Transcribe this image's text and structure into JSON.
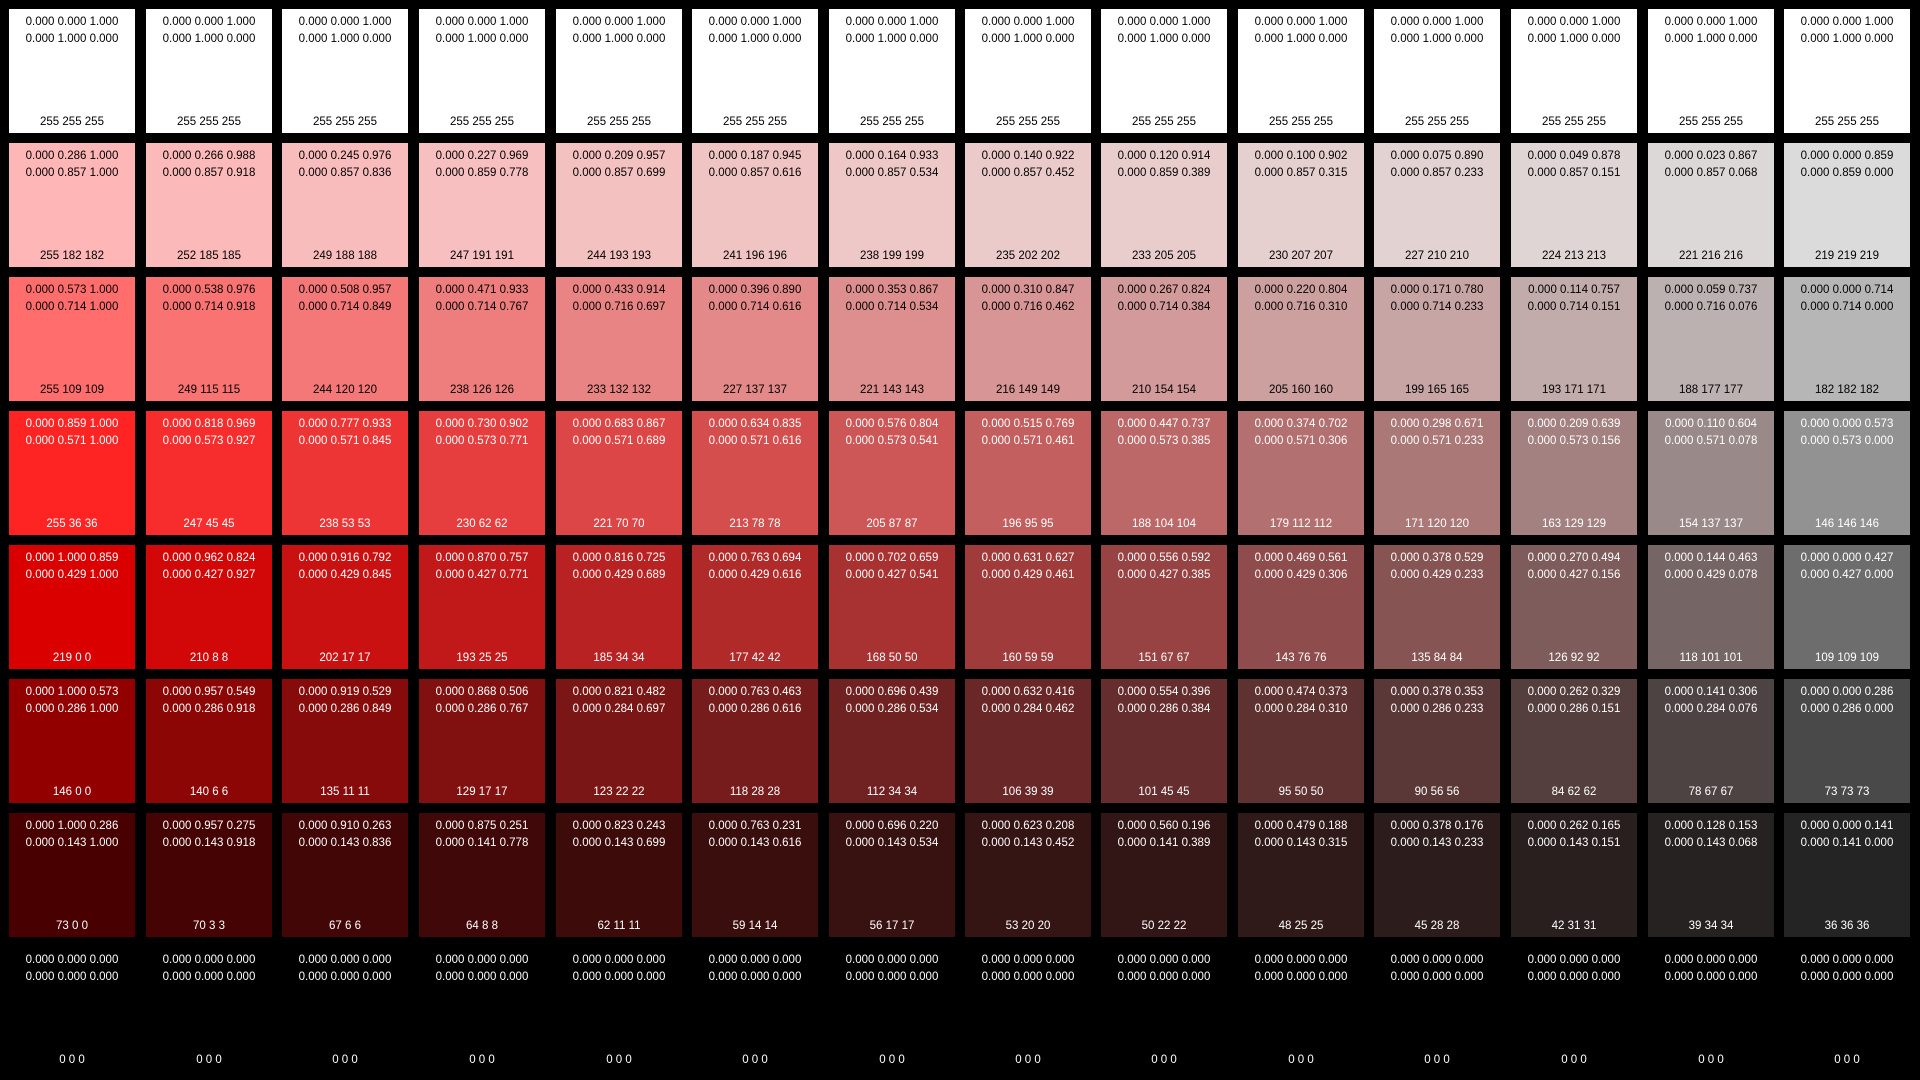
{
  "swatches": [
    [
      {
        "line1": "0.000 0.000 1.000",
        "line2": "0.000 1.000 0.000",
        "rgb": "255 255 255",
        "color": "#ffffff"
      },
      {
        "line1": "0.000 0.000 1.000",
        "line2": "0.000 1.000 0.000",
        "rgb": "255 255 255",
        "color": "#ffffff"
      },
      {
        "line1": "0.000 0.000 1.000",
        "line2": "0.000 1.000 0.000",
        "rgb": "255 255 255",
        "color": "#ffffff"
      },
      {
        "line1": "0.000 0.000 1.000",
        "line2": "0.000 1.000 0.000",
        "rgb": "255 255 255",
        "color": "#ffffff"
      },
      {
        "line1": "0.000 0.000 1.000",
        "line2": "0.000 1.000 0.000",
        "rgb": "255 255 255",
        "color": "#ffffff"
      },
      {
        "line1": "0.000 0.000 1.000",
        "line2": "0.000 1.000 0.000",
        "rgb": "255 255 255",
        "color": "#ffffff"
      },
      {
        "line1": "0.000 0.000 1.000",
        "line2": "0.000 1.000 0.000",
        "rgb": "255 255 255",
        "color": "#ffffff"
      },
      {
        "line1": "0.000 0.000 1.000",
        "line2": "0.000 1.000 0.000",
        "rgb": "255 255 255",
        "color": "#ffffff"
      },
      {
        "line1": "0.000 0.000 1.000",
        "line2": "0.000 1.000 0.000",
        "rgb": "255 255 255",
        "color": "#ffffff"
      },
      {
        "line1": "0.000 0.000 1.000",
        "line2": "0.000 1.000 0.000",
        "rgb": "255 255 255",
        "color": "#ffffff"
      },
      {
        "line1": "0.000 0.000 1.000",
        "line2": "0.000 1.000 0.000",
        "rgb": "255 255 255",
        "color": "#ffffff"
      },
      {
        "line1": "0.000 0.000 1.000",
        "line2": "0.000 1.000 0.000",
        "rgb": "255 255 255",
        "color": "#ffffff"
      },
      {
        "line1": "0.000 0.000 1.000",
        "line2": "0.000 1.000 0.000",
        "rgb": "255 255 255",
        "color": "#ffffff"
      },
      {
        "line1": "0.000 0.000 1.000",
        "line2": "0.000 1.000 0.000",
        "rgb": "255 255 255",
        "color": "#ffffff"
      }
    ],
    [
      {
        "line1": "0.000 0.286 1.000",
        "line2": "0.000 0.857 1.000",
        "rgb": "255 182 182",
        "color": "#ffb6b6"
      },
      {
        "line1": "0.000 0.266 0.988",
        "line2": "0.000 0.857 0.918",
        "rgb": "252 185 185",
        "color": "#fcb9b9"
      },
      {
        "line1": "0.000 0.245 0.976",
        "line2": "0.000 0.857 0.836",
        "rgb": "249 188 188",
        "color": "#f9bcbc"
      },
      {
        "line1": "0.000 0.227 0.969",
        "line2": "0.000 0.859 0.778",
        "rgb": "247 191 191",
        "color": "#f7bfbf"
      },
      {
        "line1": "0.000 0.209 0.957",
        "line2": "0.000 0.857 0.699",
        "rgb": "244 193 193",
        "color": "#f4c1c1"
      },
      {
        "line1": "0.000 0.187 0.945",
        "line2": "0.000 0.857 0.616",
        "rgb": "241 196 196",
        "color": "#f1c4c4"
      },
      {
        "line1": "0.000 0.164 0.933",
        "line2": "0.000 0.857 0.534",
        "rgb": "238 199 199",
        "color": "#eec7c7"
      },
      {
        "line1": "0.000 0.140 0.922",
        "line2": "0.000 0.857 0.452",
        "rgb": "235 202 202",
        "color": "#ebcaca"
      },
      {
        "line1": "0.000 0.120 0.914",
        "line2": "0.000 0.859 0.389",
        "rgb": "233 205 205",
        "color": "#e9cdcd"
      },
      {
        "line1": "0.000 0.100 0.902",
        "line2": "0.000 0.857 0.315",
        "rgb": "230 207 207",
        "color": "#e6cfcf"
      },
      {
        "line1": "0.000 0.075 0.890",
        "line2": "0.000 0.857 0.233",
        "rgb": "227 210 210",
        "color": "#e3d2d2"
      },
      {
        "line1": "0.000 0.049 0.878",
        "line2": "0.000 0.857 0.151",
        "rgb": "224 213 213",
        "color": "#e0d5d5"
      },
      {
        "line1": "0.000 0.023 0.867",
        "line2": "0.000 0.857 0.068",
        "rgb": "221 216 216",
        "color": "#ddd8d8"
      },
      {
        "line1": "0.000 0.000 0.859",
        "line2": "0.000 0.859 0.000",
        "rgb": "219 219 219",
        "color": "#dbdbdb"
      }
    ],
    [
      {
        "line1": "0.000 0.573 1.000",
        "line2": "0.000 0.714 1.000",
        "rgb": "255 109 109",
        "color": "#ff6d6d"
      },
      {
        "line1": "0.000 0.538 0.976",
        "line2": "0.000 0.714 0.918",
        "rgb": "249 115 115",
        "color": "#f97373"
      },
      {
        "line1": "0.000 0.508 0.957",
        "line2": "0.000 0.714 0.849",
        "rgb": "244 120 120",
        "color": "#f47878"
      },
      {
        "line1": "0.000 0.471 0.933",
        "line2": "0.000 0.714 0.767",
        "rgb": "238 126 126",
        "color": "#ee7e7e"
      },
      {
        "line1": "0.000 0.433 0.914",
        "line2": "0.000 0.716 0.697",
        "rgb": "233 132 132",
        "color": "#e98484"
      },
      {
        "line1": "0.000 0.396 0.890",
        "line2": "0.000 0.714 0.616",
        "rgb": "227 137 137",
        "color": "#e38989"
      },
      {
        "line1": "0.000 0.353 0.867",
        "line2": "0.000 0.714 0.534",
        "rgb": "221 143 143",
        "color": "#dd8f8f"
      },
      {
        "line1": "0.000 0.310 0.847",
        "line2": "0.000 0.716 0.462",
        "rgb": "216 149 149",
        "color": "#d89595"
      },
      {
        "line1": "0.000 0.267 0.824",
        "line2": "0.000 0.714 0.384",
        "rgb": "210 154 154",
        "color": "#d29a9a"
      },
      {
        "line1": "0.000 0.220 0.804",
        "line2": "0.000 0.716 0.310",
        "rgb": "205 160 160",
        "color": "#cda0a0"
      },
      {
        "line1": "0.000 0.171 0.780",
        "line2": "0.000 0.714 0.233",
        "rgb": "199 165 165",
        "color": "#c7a5a5"
      },
      {
        "line1": "0.000 0.114 0.757",
        "line2": "0.000 0.714 0.151",
        "rgb": "193 171 171",
        "color": "#c1abab"
      },
      {
        "line1": "0.000 0.059 0.737",
        "line2": "0.000 0.716 0.076",
        "rgb": "188 177 177",
        "color": "#bcb1b1"
      },
      {
        "line1": "0.000 0.000 0.714",
        "line2": "0.000 0.714 0.000",
        "rgb": "182 182 182",
        "color": "#b6b6b6"
      }
    ],
    [
      {
        "line1": "0.000 0.859 1.000",
        "line2": "0.000 0.571 1.000",
        "rgb": "255 36 36",
        "color": "#ff2424"
      },
      {
        "line1": "0.000 0.818 0.969",
        "line2": "0.000 0.573 0.927",
        "rgb": "247 45 45",
        "color": "#f72d2d"
      },
      {
        "line1": "0.000 0.777 0.933",
        "line2": "0.000 0.571 0.845",
        "rgb": "238 53 53",
        "color": "#ee3535"
      },
      {
        "line1": "0.000 0.730 0.902",
        "line2": "0.000 0.573 0.771",
        "rgb": "230 62 62",
        "color": "#e63e3e"
      },
      {
        "line1": "0.000 0.683 0.867",
        "line2": "0.000 0.571 0.689",
        "rgb": "221 70 70",
        "color": "#dd4646"
      },
      {
        "line1": "0.000 0.634 0.835",
        "line2": "0.000 0.571 0.616",
        "rgb": "213 78 78",
        "color": "#d54e4e"
      },
      {
        "line1": "0.000 0.576 0.804",
        "line2": "0.000 0.573 0.541",
        "rgb": "205 87 87",
        "color": "#cd5757"
      },
      {
        "line1": "0.000 0.515 0.769",
        "line2": "0.000 0.571 0.461",
        "rgb": "196 95 95",
        "color": "#c45f5f"
      },
      {
        "line1": "0.000 0.447 0.737",
        "line2": "0.000 0.573 0.385",
        "rgb": "188 104 104",
        "color": "#bc6868"
      },
      {
        "line1": "0.000 0.374 0.702",
        "line2": "0.000 0.571 0.306",
        "rgb": "179 112 112",
        "color": "#b37070"
      },
      {
        "line1": "0.000 0.298 0.671",
        "line2": "0.000 0.571 0.233",
        "rgb": "171 120 120",
        "color": "#ab7878"
      },
      {
        "line1": "0.000 0.209 0.639",
        "line2": "0.000 0.573 0.156",
        "rgb": "163 129 129",
        "color": "#a38181"
      },
      {
        "line1": "0.000 0.110 0.604",
        "line2": "0.000 0.571 0.078",
        "rgb": "154 137 137",
        "color": "#9a8989"
      },
      {
        "line1": "0.000 0.000 0.573",
        "line2": "0.000 0.573 0.000",
        "rgb": "146 146 146",
        "color": "#929292"
      }
    ],
    [
      {
        "line1": "0.000 1.000 0.859",
        "line2": "0.000 0.429 1.000",
        "rgb": "219 0 0",
        "color": "#db0000"
      },
      {
        "line1": "0.000 0.962 0.824",
        "line2": "0.000 0.427 0.927",
        "rgb": "210 8 8",
        "color": "#d20808"
      },
      {
        "line1": "0.000 0.916 0.792",
        "line2": "0.000 0.429 0.845",
        "rgb": "202 17 17",
        "color": "#ca1111"
      },
      {
        "line1": "0.000 0.870 0.757",
        "line2": "0.000 0.427 0.771",
        "rgb": "193 25 25",
        "color": "#c11919"
      },
      {
        "line1": "0.000 0.816 0.725",
        "line2": "0.000 0.429 0.689",
        "rgb": "185 34 34",
        "color": "#b92222"
      },
      {
        "line1": "0.000 0.763 0.694",
        "line2": "0.000 0.429 0.616",
        "rgb": "177 42 42",
        "color": "#b12a2a"
      },
      {
        "line1": "0.000 0.702 0.659",
        "line2": "0.000 0.427 0.541",
        "rgb": "168 50 50",
        "color": "#a83232"
      },
      {
        "line1": "0.000 0.631 0.627",
        "line2": "0.000 0.429 0.461",
        "rgb": "160 59 59",
        "color": "#a03b3b"
      },
      {
        "line1": "0.000 0.556 0.592",
        "line2": "0.000 0.427 0.385",
        "rgb": "151 67 67",
        "color": "#974343"
      },
      {
        "line1": "0.000 0.469 0.561",
        "line2": "0.000 0.429 0.306",
        "rgb": "143 76 76",
        "color": "#8f4c4c"
      },
      {
        "line1": "0.000 0.378 0.529",
        "line2": "0.000 0.429 0.233",
        "rgb": "135 84 84",
        "color": "#875454"
      },
      {
        "line1": "0.000 0.270 0.494",
        "line2": "0.000 0.427 0.156",
        "rgb": "126 92 92",
        "color": "#7e5c5c"
      },
      {
        "line1": "0.000 0.144 0.463",
        "line2": "0.000 0.429 0.078",
        "rgb": "118 101 101",
        "color": "#766565"
      },
      {
        "line1": "0.000 0.000 0.427",
        "line2": "0.000 0.427 0.000",
        "rgb": "109 109 109",
        "color": "#6d6d6d"
      }
    ],
    [
      {
        "line1": "0.000 1.000 0.573",
        "line2": "0.000 0.286 1.000",
        "rgb": "146 0 0",
        "color": "#920000"
      },
      {
        "line1": "0.000 0.957 0.549",
        "line2": "0.000 0.286 0.918",
        "rgb": "140 6 6",
        "color": "#8c0606"
      },
      {
        "line1": "0.000 0.919 0.529",
        "line2": "0.000 0.286 0.849",
        "rgb": "135 11 11",
        "color": "#870b0b"
      },
      {
        "line1": "0.000 0.868 0.506",
        "line2": "0.000 0.286 0.767",
        "rgb": "129 17 17",
        "color": "#811111"
      },
      {
        "line1": "0.000 0.821 0.482",
        "line2": "0.000 0.284 0.697",
        "rgb": "123 22 22",
        "color": "#7b1616"
      },
      {
        "line1": "0.000 0.763 0.463",
        "line2": "0.000 0.286 0.616",
        "rgb": "118 28 28",
        "color": "#761c1c"
      },
      {
        "line1": "0.000 0.696 0.439",
        "line2": "0.000 0.286 0.534",
        "rgb": "112 34 34",
        "color": "#702222"
      },
      {
        "line1": "0.000 0.632 0.416",
        "line2": "0.000 0.284 0.462",
        "rgb": "106 39 39",
        "color": "#6a2727"
      },
      {
        "line1": "0.000 0.554 0.396",
        "line2": "0.000 0.286 0.384",
        "rgb": "101 45 45",
        "color": "#652d2d"
      },
      {
        "line1": "0.000 0.474 0.373",
        "line2": "0.000 0.284 0.310",
        "rgb": "95 50 50",
        "color": "#5f3232"
      },
      {
        "line1": "0.000 0.378 0.353",
        "line2": "0.000 0.286 0.233",
        "rgb": "90 56 56",
        "color": "#5a3838"
      },
      {
        "line1": "0.000 0.262 0.329",
        "line2": "0.000 0.286 0.151",
        "rgb": "84 62 62",
        "color": "#543e3e"
      },
      {
        "line1": "0.000 0.141 0.306",
        "line2": "0.000 0.284 0.076",
        "rgb": "78 67 67",
        "color": "#4e4343"
      },
      {
        "line1": "0.000 0.000 0.286",
        "line2": "0.000 0.286 0.000",
        "rgb": "73 73 73",
        "color": "#494949"
      }
    ],
    [
      {
        "line1": "0.000 1.000 0.286",
        "line2": "0.000 0.143 1.000",
        "rgb": "73 0 0",
        "color": "#490000"
      },
      {
        "line1": "0.000 0.957 0.275",
        "line2": "0.000 0.143 0.918",
        "rgb": "70 3 3",
        "color": "#460303"
      },
      {
        "line1": "0.000 0.910 0.263",
        "line2": "0.000 0.143 0.836",
        "rgb": "67 6 6",
        "color": "#430606"
      },
      {
        "line1": "0.000 0.875 0.251",
        "line2": "0.000 0.141 0.778",
        "rgb": "64 8 8",
        "color": "#400808"
      },
      {
        "line1": "0.000 0.823 0.243",
        "line2": "0.000 0.143 0.699",
        "rgb": "62 11 11",
        "color": "#3e0b0b"
      },
      {
        "line1": "0.000 0.763 0.231",
        "line2": "0.000 0.143 0.616",
        "rgb": "59 14 14",
        "color": "#3b0e0e"
      },
      {
        "line1": "0.000 0.696 0.220",
        "line2": "0.000 0.143 0.534",
        "rgb": "56 17 17",
        "color": "#381111"
      },
      {
        "line1": "0.000 0.623 0.208",
        "line2": "0.000 0.143 0.452",
        "rgb": "53 20 20",
        "color": "#351414"
      },
      {
        "line1": "0.000 0.560 0.196",
        "line2": "0.000 0.141 0.389",
        "rgb": "50 22 22",
        "color": "#321616"
      },
      {
        "line1": "0.000 0.479 0.188",
        "line2": "0.000 0.143 0.315",
        "rgb": "48 25 25",
        "color": "#301919"
      },
      {
        "line1": "0.000 0.378 0.176",
        "line2": "0.000 0.143 0.233",
        "rgb": "45 28 28",
        "color": "#2d1c1c"
      },
      {
        "line1": "0.000 0.262 0.165",
        "line2": "0.000 0.143 0.151",
        "rgb": "42 31 31",
        "color": "#2a1f1f"
      },
      {
        "line1": "0.000 0.128 0.153",
        "line2": "0.000 0.143 0.068",
        "rgb": "39 34 34",
        "color": "#272222"
      },
      {
        "line1": "0.000 0.000 0.141",
        "line2": "0.000 0.141 0.000",
        "rgb": "36 36 36",
        "color": "#242424"
      }
    ],
    [
      {
        "line1": "0.000 0.000 0.000",
        "line2": "0.000 0.000 0.000",
        "rgb": "0 0 0",
        "color": "#000000"
      },
      {
        "line1": "0.000 0.000 0.000",
        "line2": "0.000 0.000 0.000",
        "rgb": "0 0 0",
        "color": "#000000"
      },
      {
        "line1": "0.000 0.000 0.000",
        "line2": "0.000 0.000 0.000",
        "rgb": "0 0 0",
        "color": "#000000"
      },
      {
        "line1": "0.000 0.000 0.000",
        "line2": "0.000 0.000 0.000",
        "rgb": "0 0 0",
        "color": "#000000"
      },
      {
        "line1": "0.000 0.000 0.000",
        "line2": "0.000 0.000 0.000",
        "rgb": "0 0 0",
        "color": "#000000"
      },
      {
        "line1": "0.000 0.000 0.000",
        "line2": "0.000 0.000 0.000",
        "rgb": "0 0 0",
        "color": "#000000"
      },
      {
        "line1": "0.000 0.000 0.000",
        "line2": "0.000 0.000 0.000",
        "rgb": "0 0 0",
        "color": "#000000"
      },
      {
        "line1": "0.000 0.000 0.000",
        "line2": "0.000 0.000 0.000",
        "rgb": "0 0 0",
        "color": "#000000"
      },
      {
        "line1": "0.000 0.000 0.000",
        "line2": "0.000 0.000 0.000",
        "rgb": "0 0 0",
        "color": "#000000"
      },
      {
        "line1": "0.000 0.000 0.000",
        "line2": "0.000 0.000 0.000",
        "rgb": "0 0 0",
        "color": "#000000"
      },
      {
        "line1": "0.000 0.000 0.000",
        "line2": "0.000 0.000 0.000",
        "rgb": "0 0 0",
        "color": "#000000"
      },
      {
        "line1": "0.000 0.000 0.000",
        "line2": "0.000 0.000 0.000",
        "rgb": "0 0 0",
        "color": "#000000"
      },
      {
        "line1": "0.000 0.000 0.000",
        "line2": "0.000 0.000 0.000",
        "rgb": "0 0 0",
        "color": "#000000"
      },
      {
        "line1": "0.000 0.000 0.000",
        "line2": "0.000 0.000 0.000",
        "rgb": "0 0 0",
        "color": "#000000"
      }
    ]
  ]
}
